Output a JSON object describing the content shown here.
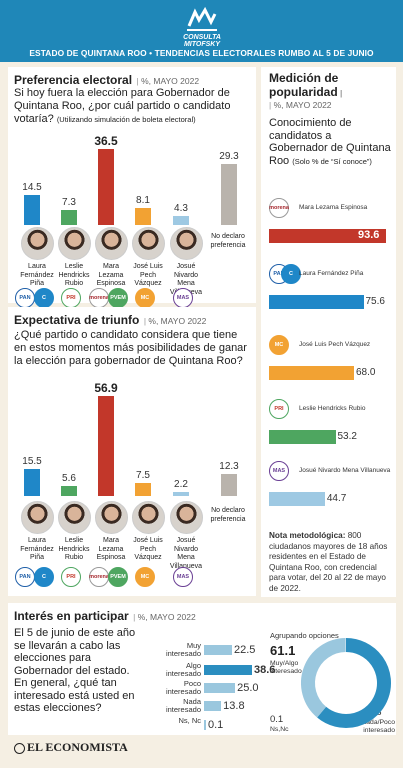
{
  "header": {
    "brand": "CONSULTA MITOFSKY",
    "line": "ESTADO DE QUINTANA ROO  •  TENDENCIAS ELECTORALES RUMBO AL 5 DE JUNIO"
  },
  "pref": {
    "title": "Preferencia electoral",
    "meta": "%, MAYO 2022",
    "question": "Si hoy fuera la elección para Gobernador de Quintana Roo, ¿por cuál partido o candidato votaría?",
    "note": "(Utilizando simulación de boleta electoral)"
  },
  "triunfo": {
    "title": "Expectativa de triunfo",
    "meta": "%, MAYO 2022",
    "question": "¿Qué partido o candidato considera que tiene en estos momentos más posibilidades de ganar la elección para gobernador de Quintana Roo?"
  },
  "popularity": {
    "title1": "Medición de",
    "title2": "popularidad",
    "meta": "%, MAYO 2022",
    "question": "Conocimiento de candidatos a Gobernador de Quintana Roo",
    "qnote": "(Solo % de “Sí conoce”)"
  },
  "method": {
    "bold": "Nota metodológica:",
    "text": "800 ciudadanos mayores de 18 años residentes en el Estado de Quintana Roo, con credencial para votar, del 20 al 22 de mayo de 2022."
  },
  "interest": {
    "title": "Interés en participar",
    "meta": "%, MAYO 2022",
    "question": "El 5 de junio de este año se llevarán a cabo las elecciones para Gobernador del estado. En general, ¿qué tan interesado está usted en estas elecciones?",
    "group_title": "Agrupando opciones",
    "group_a_value": "61.1",
    "group_a_label": "Muy/Algo interesado",
    "group_b_value": "38.8",
    "group_b_label": "Nada/Poco interesado",
    "group_c_value": "0.1",
    "group_c_label": "Ns,Nc"
  },
  "footer": {
    "brand": "EL ECONOMISTA"
  },
  "candidates": [
    {
      "name": "Laura Fernández Piña",
      "lines": [
        "Laura",
        "Fernández",
        "Piña"
      ],
      "parties": [
        "PAN",
        "C"
      ]
    },
    {
      "name": "Leslie Hendricks Rubio",
      "lines": [
        "Leslie",
        "Hendricks",
        "Rubio"
      ],
      "parties": [
        "PRI"
      ]
    },
    {
      "name": "Mara Lezama Espinosa",
      "lines": [
        "Mara",
        "Lezama",
        "Espinosa"
      ],
      "parties": [
        "morena",
        "PVEM"
      ]
    },
    {
      "name": "José Luis Pech Vázquez",
      "lines": [
        "José Luis",
        "Pech",
        "Vázquez"
      ],
      "parties": [
        "MC"
      ]
    },
    {
      "name": "Josué Nivardo Mena Villanueva",
      "lines": [
        "Josué Nivardo",
        "Mena",
        "Villanueva"
      ],
      "parties": [
        "MAS"
      ]
    }
  ],
  "nodeclara": [
    "No declaro",
    "preferencia"
  ],
  "colors": {
    "pan": "#1f87c8",
    "pri": "#4ea660",
    "morena": "#c2372a",
    "mc": "#f2a233",
    "mas": "#9ec9e3",
    "gray": "#b9b3ac",
    "interest": "#2b8ec0",
    "interest_light": "#9ac7de"
  },
  "chart_data": [
    {
      "type": "bar",
      "title": "Preferencia electoral",
      "categories": [
        "Laura Fernández Piña",
        "Leslie Hendricks Rubio",
        "Mara Lezama Espinosa",
        "José Luis Pech Vázquez",
        "Josué Nivardo Mena Villanueva",
        "No declaro preferencia"
      ],
      "values": [
        14.5,
        7.3,
        36.5,
        8.1,
        4.3,
        29.3
      ],
      "labels": [
        "14.5",
        "7.3",
        "36.5",
        "8.1",
        "4.3",
        "29.3"
      ]
    },
    {
      "type": "bar",
      "title": "Expectativa de triunfo",
      "categories": [
        "Laura Fernández Piña",
        "Leslie Hendricks Rubio",
        "Mara Lezama Espinosa",
        "José Luis Pech Vázquez",
        "Josué Nivardo Mena Villanueva",
        "No declaro preferencia"
      ],
      "values": [
        15.5,
        5.6,
        56.9,
        7.5,
        2.2,
        12.3
      ],
      "labels": [
        "15.5",
        "5.6",
        "56.9",
        "7.5",
        "2.2",
        "12.3"
      ]
    },
    {
      "type": "bar",
      "title": "Medición de popularidad",
      "categories": [
        "Mara Lezama Espinosa",
        "Laura Fernández Piña",
        "José Luis Pech Vázquez",
        "Leslie Hendricks Rubio",
        "Josué Nivardo Mena Villanueva"
      ],
      "values": [
        93.6,
        75.6,
        68.0,
        53.2,
        44.7
      ],
      "labels": [
        "93.6",
        "75.6",
        "68.0",
        "53.2",
        "44.7"
      ]
    },
    {
      "type": "bar",
      "title": "Interés en participar",
      "categories": [
        "Muy interesado",
        "Algo interesado",
        "Poco interesado",
        "Nada interesado",
        "Ns, Nc"
      ],
      "values": [
        22.5,
        38.6,
        25.0,
        13.8,
        0.1
      ],
      "labels": [
        "22.5",
        "38.6",
        "25.0",
        "13.8",
        "0.1"
      ]
    },
    {
      "type": "pie",
      "title": "Agrupando opciones",
      "categories": [
        "Muy/Algo interesado",
        "Nada/Poco interesado",
        "Ns,Nc"
      ],
      "values": [
        61.1,
        38.8,
        0.1
      ]
    }
  ],
  "pop_labels": [
    "Mara Lezama Espinosa",
    "Laura Fernández Piña",
    "José Luis Pech Vázquez",
    "Leslie Hendricks Rubio",
    "Josué Nivardo Mena Villanueva"
  ],
  "int_labels": [
    [
      "Muy",
      "interesado"
    ],
    [
      "Algo",
      "interesado"
    ],
    [
      "Poco",
      "interesado"
    ],
    [
      "Nada",
      "interesado"
    ],
    [
      "Ns, Nc",
      ""
    ]
  ]
}
